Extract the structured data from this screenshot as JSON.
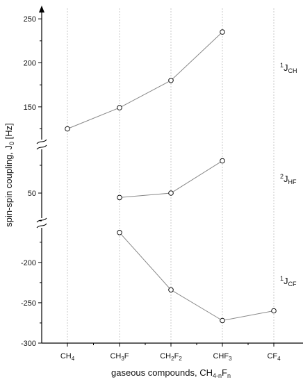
{
  "chart_data": {
    "type": "line",
    "y_axis_broken": true,
    "categories": [
      {
        "base": "CH",
        "sub": "4"
      },
      {
        "base": "CH",
        "sub": "3",
        "tail": "F"
      },
      {
        "base": "CH",
        "sub": "2",
        "tail": "F",
        "sub2": "2"
      },
      {
        "base": "CHF",
        "sub": "3"
      },
      {
        "base": "CF",
        "sub": "4"
      }
    ],
    "xlabel": {
      "text": "gaseous compounds, CH",
      "sub1": "4-n",
      "mid": "F",
      "sub2": "n"
    },
    "ylabel": {
      "text": "spin-spin coupling, J",
      "sub": "0",
      "unit": " [Hz]"
    },
    "segments": [
      {
        "id": "JCH",
        "range": [
          112,
          258
        ],
        "ticks": [
          150,
          200,
          250
        ],
        "label": {
          "sup": "1",
          "base": "J",
          "sub": "CH"
        },
        "values": [
          125,
          149,
          180,
          235,
          null
        ]
      },
      {
        "id": "JHF",
        "range": [
          25,
          95
        ],
        "ticks": [
          50
        ],
        "label": {
          "sup": "2",
          "base": "J",
          "sub": "HF"
        },
        "values": [
          null,
          46,
          50,
          79,
          null
        ]
      },
      {
        "id": "JCF",
        "range": [
          -300,
          -158
        ],
        "ticks": [
          -200,
          -250,
          -300
        ],
        "label": {
          "sup": "1",
          "base": "J",
          "sub": "CF"
        },
        "values": [
          null,
          -163,
          -234,
          -272,
          -260
        ]
      }
    ],
    "grid": "vertical-dotted-at-categories",
    "legend": "none"
  }
}
